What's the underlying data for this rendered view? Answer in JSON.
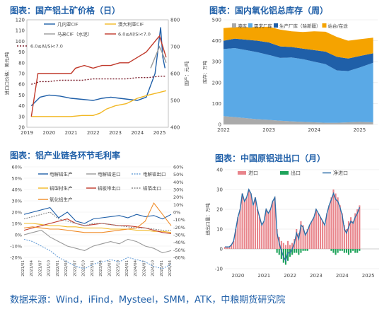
{
  "footer": "数据来源：Wind，iFind，Mysteel，SMM，ATK，中粮期货研究院",
  "chart_data": [
    {
      "id": "bauxite",
      "type": "line",
      "title": "图表：国产铝土矿价格（日）",
      "ylabel_left": "进口口价格：美元/吨",
      "ylabel_right": "国产：元/吨",
      "x_ticks": [
        "2019",
        "2020",
        "2021",
        "2022",
        "2023",
        "2024",
        "2025"
      ],
      "ylim_left": [
        20,
        120
      ],
      "y_ticks_left": [
        20,
        30,
        40,
        50,
        60,
        70,
        80,
        90,
        100,
        110,
        120
      ],
      "ylim_right": [
        400,
        800
      ],
      "y_ticks_right": [
        400,
        500,
        600,
        700,
        800
      ],
      "legend": [
        "几内亚CIF",
        "澳大利亚CIF",
        "马来CIF（水泥）",
        "6.0≤Al/Si<7.0",
        "6.0≤Al/Si<7.0"
      ],
      "series": [
        {
          "name": "几内亚CIF",
          "axis": "left",
          "color": "#1f5fa8",
          "x": [
            2019.2,
            2019.6,
            2020.0,
            2020.5,
            2021.0,
            2021.5,
            2022.0,
            2022.4,
            2022.8,
            2023.2,
            2023.6,
            2024.0,
            2024.4,
            2024.8,
            2024.95,
            2025.05,
            2025.15,
            2025.25
          ],
          "y": [
            40,
            48,
            50,
            49,
            47,
            46,
            45,
            47,
            48,
            47,
            46,
            45,
            48,
            70,
            95,
            113,
            85,
            75
          ]
        },
        {
          "name": "澳大利亚CIF",
          "axis": "left",
          "color": "#f2b824",
          "x": [
            2019.2,
            2020.0,
            2020.6,
            2021.0,
            2021.5,
            2022.0,
            2022.3,
            2022.6,
            2023.0,
            2023.5,
            2024.0,
            2024.5,
            2024.9,
            2025.3
          ],
          "y": [
            30,
            30,
            30,
            30,
            31,
            31,
            33,
            37,
            40,
            42,
            47,
            50,
            52,
            54
          ]
        },
        {
          "name": "马来CIF（水泥）",
          "axis": "left",
          "color": "#999999",
          "x": [
            2024.6,
            2024.8,
            2025.0,
            2025.15,
            2025.3
          ],
          "y": [
            75,
            85,
            95,
            88,
            80
          ]
        },
        {
          "name": "6.0≤Al/Si<7.0",
          "axis": "right",
          "color": "#c0392b",
          "x": [
            2019.2,
            2019.5,
            2020.0,
            2020.5,
            2021.0,
            2021.2,
            2021.6,
            2022.0,
            2022.4,
            2022.8,
            2023.2,
            2023.6,
            2024.0,
            2024.4,
            2024.8,
            2025.0,
            2025.15,
            2025.3
          ],
          "y": [
            440,
            600,
            600,
            600,
            600,
            620,
            630,
            620,
            630,
            630,
            640,
            640,
            660,
            680,
            720,
            740,
            700,
            660
          ]
        },
        {
          "name": "6.0≤Al/Si<7.0",
          "axis": "right",
          "color": "#7a1e2c",
          "dash": true,
          "x": [
            2019.2,
            2019.6,
            2020.0,
            2020.5,
            2021.0,
            2021.5,
            2022.0,
            2022.5,
            2023.0,
            2023.5,
            2024.0,
            2024.5,
            2025.0,
            2025.3
          ],
          "y": [
            560,
            570,
            570,
            575,
            575,
            575,
            580,
            580,
            580,
            580,
            585,
            585,
            590,
            590
          ]
        }
      ]
    },
    {
      "id": "alumina_inventory",
      "type": "area",
      "title": "图表：国内氧化铝总库存（周）",
      "ylabel": "库存：万吨",
      "x_ticks": [
        "2022",
        "2023",
        "2024",
        "2025"
      ],
      "ylim": [
        0,
        500
      ],
      "y_ticks": [
        0,
        100,
        200,
        300,
        400,
        500
      ],
      "legend": [
        "港库",
        "需求厂库",
        "生产厂库（除新疆）",
        "站台/在途"
      ],
      "x": [
        2022.0,
        2022.25,
        2022.5,
        2022.75,
        2023.0,
        2023.25,
        2023.5,
        2023.75,
        2024.0,
        2024.25,
        2024.5,
        2024.75,
        2025.0,
        2025.3
      ],
      "series": [
        {
          "name": "港库",
          "color": "#aaaaaa",
          "values": [
            40,
            35,
            30,
            25,
            22,
            18,
            15,
            12,
            10,
            8,
            8,
            10,
            12,
            10
          ]
        },
        {
          "name": "需求厂库",
          "color": "#5aa9e6",
          "values": [
            320,
            330,
            325,
            320,
            310,
            300,
            305,
            300,
            290,
            280,
            250,
            245,
            260,
            285
          ]
        },
        {
          "name": "生产厂库（除新疆）",
          "color": "#1f5fa8",
          "values": [
            40,
            45,
            50,
            55,
            60,
            55,
            50,
            50,
            55,
            60,
            65,
            60,
            55,
            45
          ]
        },
        {
          "name": "站台/在途",
          "color": "#f5a300",
          "values": [
            60,
            55,
            60,
            65,
            75,
            80,
            75,
            80,
            90,
            95,
            95,
            85,
            80,
            75
          ]
        }
      ]
    },
    {
      "id": "margins",
      "type": "line",
      "title": "图表：铝产业链各环节毛利率",
      "ylim_left": [
        -20,
        60
      ],
      "y_ticks_left": [
        "-20%",
        "-10%",
        "0%",
        "10%",
        "20%",
        "30%",
        "40%",
        "50%",
        "60%"
      ],
      "ylim_right": [
        -60,
        60
      ],
      "y_ticks_right": [
        "-60%",
        "-50%",
        "-40%",
        "-30%",
        "-20%",
        "-10%",
        "0%",
        "10%",
        "20%",
        "30%",
        "40%",
        "50%",
        "60%"
      ],
      "x_ticks": [
        "2021/01",
        "2021/04",
        "2021/07",
        "2021/10",
        "2022/01",
        "2022/04",
        "2022/07",
        "2022/10",
        "2023/01",
        "2023/04",
        "2023/07",
        "2023/10",
        "2024/01",
        "2024/04",
        "2024/07",
        "2024/10",
        "2025/01",
        "2025/04"
      ],
      "legend": [
        "电解铝生产",
        "电解铝进口",
        "电解铝出口",
        "铝型材生产",
        "铝板带出口",
        "铝箔出口",
        "氧化铝生产"
      ],
      "series": [
        {
          "name": "电解铝生产",
          "color": "#1f5fa8",
          "values": [
            18,
            20,
            22,
            24,
            15,
            20,
            12,
            10,
            14,
            15,
            16,
            17,
            15,
            18,
            16,
            17,
            14,
            18
          ]
        },
        {
          "name": "电解铝进口",
          "color": "#999999",
          "values": [
            0,
            2,
            4,
            -2,
            -6,
            -10,
            -12,
            -14,
            -10,
            -8,
            -6,
            -8,
            -4,
            -6,
            -10,
            -12,
            -16,
            -14
          ]
        },
        {
          "name": "电解铝出口",
          "color": "#6fa3d9",
          "dash": true,
          "values": [
            -4,
            -6,
            -10,
            -14,
            -20,
            -24,
            -28,
            -30,
            -26,
            -24,
            -22,
            -24,
            -20,
            -22,
            -24,
            -28,
            -30,
            -26
          ]
        },
        {
          "name": "铝型材生产",
          "color": "#f2b824",
          "values": [
            10,
            10,
            9,
            8,
            8,
            7,
            7,
            6,
            6,
            6,
            5,
            5,
            5,
            4,
            4,
            3,
            3,
            2
          ]
        },
        {
          "name": "铝板带出口",
          "color": "#c0392b",
          "values": [
            4,
            6,
            8,
            10,
            12,
            14,
            10,
            8,
            9,
            10,
            9,
            8,
            8,
            7,
            6,
            4,
            2,
            1
          ]
        },
        {
          "name": "铝箔出口",
          "color": "#888888",
          "dash": true,
          "values": [
            14,
            16,
            18,
            20,
            14,
            12,
            10,
            8,
            10,
            10,
            9,
            8,
            7,
            6,
            6,
            5,
            4,
            4
          ]
        },
        {
          "name": "氧化铝生产",
          "color": "#f08c28",
          "values": [
            6,
            7,
            6,
            5,
            5,
            4,
            3,
            2,
            2,
            2,
            3,
            4,
            5,
            6,
            12,
            28,
            18,
            8
          ]
        }
      ]
    },
    {
      "id": "trade",
      "type": "bar",
      "title": "图表：中国原铝进出口（月）",
      "ylabel": "进出口量：万吨",
      "ylim": [
        -10,
        40
      ],
      "y_ticks": [
        -10,
        0,
        10,
        20,
        30,
        40
      ],
      "x_ticks": [
        "2020",
        "2021",
        "2022",
        "2023",
        "2024",
        "2025"
      ],
      "legend": [
        "进口",
        "出口",
        "净进口"
      ],
      "months_start": "2020-01",
      "import": [
        1,
        1,
        1,
        2,
        4,
        10,
        16,
        20,
        28,
        24,
        26,
        30,
        28,
        22,
        26,
        20,
        16,
        12,
        14,
        20,
        18,
        20,
        24,
        26,
        10,
        6,
        4,
        3,
        2,
        4,
        2,
        3,
        5,
        10,
        8,
        14,
        12,
        8,
        10,
        12,
        14,
        16,
        20,
        18,
        16,
        14,
        12,
        18,
        22,
        26,
        30,
        28,
        26,
        22,
        18,
        12,
        10,
        14,
        16,
        14,
        18,
        20,
        22
      ],
      "export": [
        0,
        0,
        0,
        0,
        0,
        0,
        0,
        0,
        0,
        0,
        0,
        0,
        0,
        0,
        0,
        0,
        0,
        0,
        0,
        0,
        0,
        0,
        0,
        0,
        -2,
        -3,
        -5,
        -7,
        -8,
        -6,
        -4,
        -3,
        -2,
        -2,
        -3,
        -2,
        -1,
        -1,
        -1,
        0,
        0,
        0,
        0,
        0,
        0,
        0,
        0,
        0,
        0,
        -1,
        -2,
        -3,
        -2,
        -1,
        -1,
        -2,
        -2,
        -3,
        -2,
        -1,
        -2,
        -2,
        -1
      ],
      "net": [
        1,
        1,
        1,
        2,
        4,
        10,
        16,
        20,
        28,
        24,
        26,
        30,
        28,
        22,
        26,
        20,
        16,
        12,
        14,
        20,
        18,
        20,
        24,
        26,
        8,
        3,
        -1,
        -4,
        -6,
        -2,
        -2,
        0,
        3,
        8,
        5,
        12,
        11,
        7,
        9,
        12,
        14,
        16,
        20,
        18,
        16,
        14,
        12,
        18,
        22,
        25,
        28,
        25,
        24,
        21,
        17,
        10,
        8,
        11,
        14,
        13,
        16,
        18,
        21
      ]
    }
  ]
}
